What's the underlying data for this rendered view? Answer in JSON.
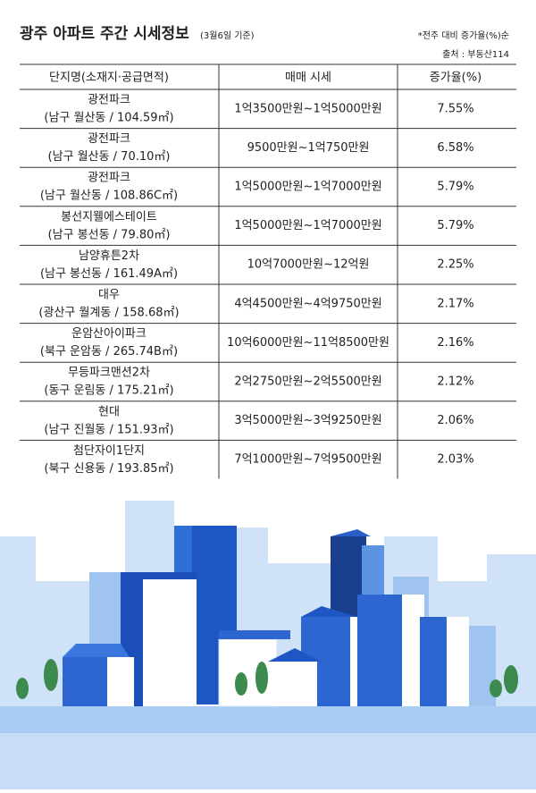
{
  "header": {
    "title": "광주 아파트 주간 시세정보",
    "date_note": "(3월6일 기준)",
    "sort_note": "*전주 대비 증가율(%)순",
    "source": "출처 : 부동산114"
  },
  "table": {
    "columns": [
      "단지명(소재지·공급면적)",
      "매매 시세",
      "증가율(%)"
    ],
    "rows": [
      {
        "name": "광전파크",
        "location": "(남구 월산동 / 104.59㎡)",
        "price": "1억3500만원~1억5000만원",
        "rate": "7.55%"
      },
      {
        "name": "광전파크",
        "location": "(남구 월산동 / 70.10㎡)",
        "price": "9500만원~1억750만원",
        "rate": "6.58%"
      },
      {
        "name": "광전파크",
        "location": "(남구 월산동 / 108.86C㎡)",
        "price": "1억5000만원~1억7000만원",
        "rate": "5.79%"
      },
      {
        "name": "봉선지웰에스테이트",
        "location": "(남구 봉선동 / 79.80㎡)",
        "price": "1억5000만원~1억7000만원",
        "rate": "5.79%"
      },
      {
        "name": "남양휴튼2차",
        "location": "(남구 봉선동 / 161.49A㎡)",
        "price": "10억7000만원~12억원",
        "rate": "2.25%"
      },
      {
        "name": "대우",
        "location": "(광산구 월계동 / 158.68㎡)",
        "price": "4억4500만원~4억9750만원",
        "rate": "2.17%"
      },
      {
        "name": "운암산아이파크",
        "location": "(북구 운암동 / 265.74B㎡)",
        "price": "10억6000만원~11억8500만원",
        "rate": "2.16%"
      },
      {
        "name": "무등파크맨션2차",
        "location": "(동구 운림동 / 175.21㎡)",
        "price": "2억2750만원~2억5500만원",
        "rate": "2.12%"
      },
      {
        "name": "현대",
        "location": "(남구 진월동 / 151.93㎡)",
        "price": "3억5000만원~3억9250만원",
        "rate": "2.06%"
      },
      {
        "name": "첨단자이1단지",
        "location": "(북구 신용동 / 193.85㎡)",
        "price": "7억1000만원~7억9500만원",
        "rate": "2.03%"
      }
    ]
  }
}
